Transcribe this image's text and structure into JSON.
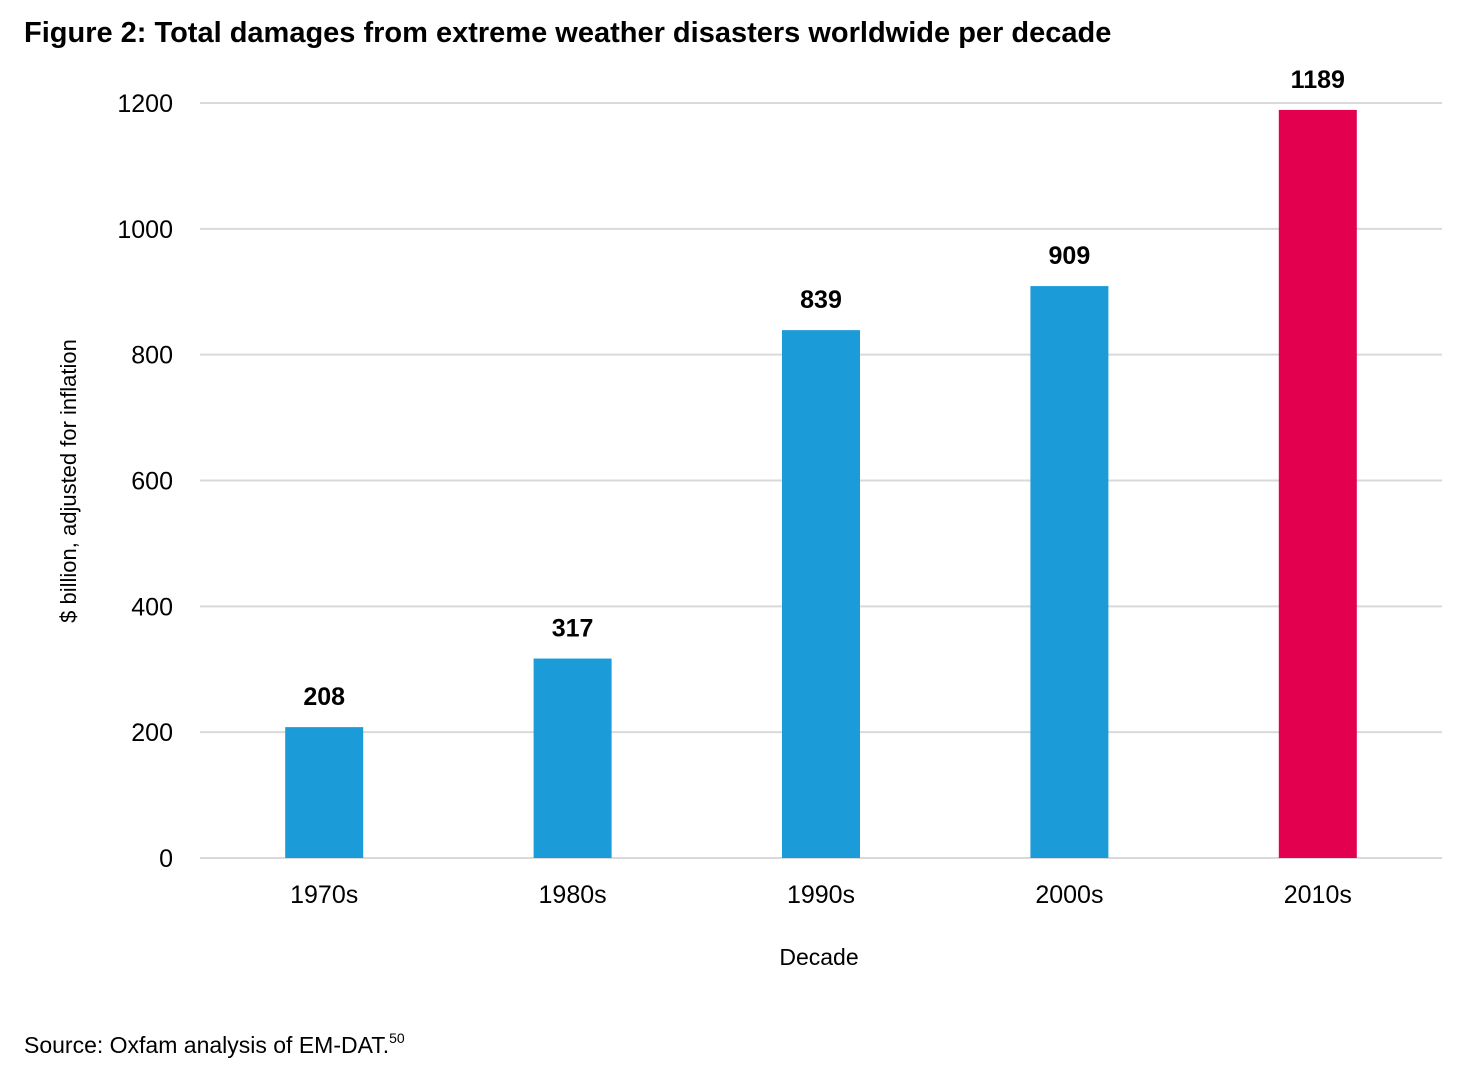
{
  "figure": {
    "title": "Figure 2: Total damages from extreme weather disasters worldwide per decade",
    "source_text": "Source: Oxfam analysis of EM-DAT.",
    "source_footnote": "50"
  },
  "chart_data": {
    "type": "bar",
    "title": "",
    "xlabel": "Decade",
    "ylabel": "$ billion, adjusted for inflation",
    "categories": [
      "1970s",
      "1980s",
      "1990s",
      "2000s",
      "2010s"
    ],
    "values": [
      208,
      317,
      839,
      909,
      1189
    ],
    "data_labels": [
      "208",
      "317",
      "839",
      "909",
      "1189"
    ],
    "ylim": [
      0,
      1200
    ],
    "yticks": [
      0,
      200,
      400,
      600,
      800,
      1000,
      1200
    ],
    "grid": true,
    "legend": "none",
    "colors": {
      "bar": "#1b9cd9",
      "highlight_bar": "#e3004f",
      "gridline": "#d9d9d9"
    },
    "highlight_index": 4
  }
}
